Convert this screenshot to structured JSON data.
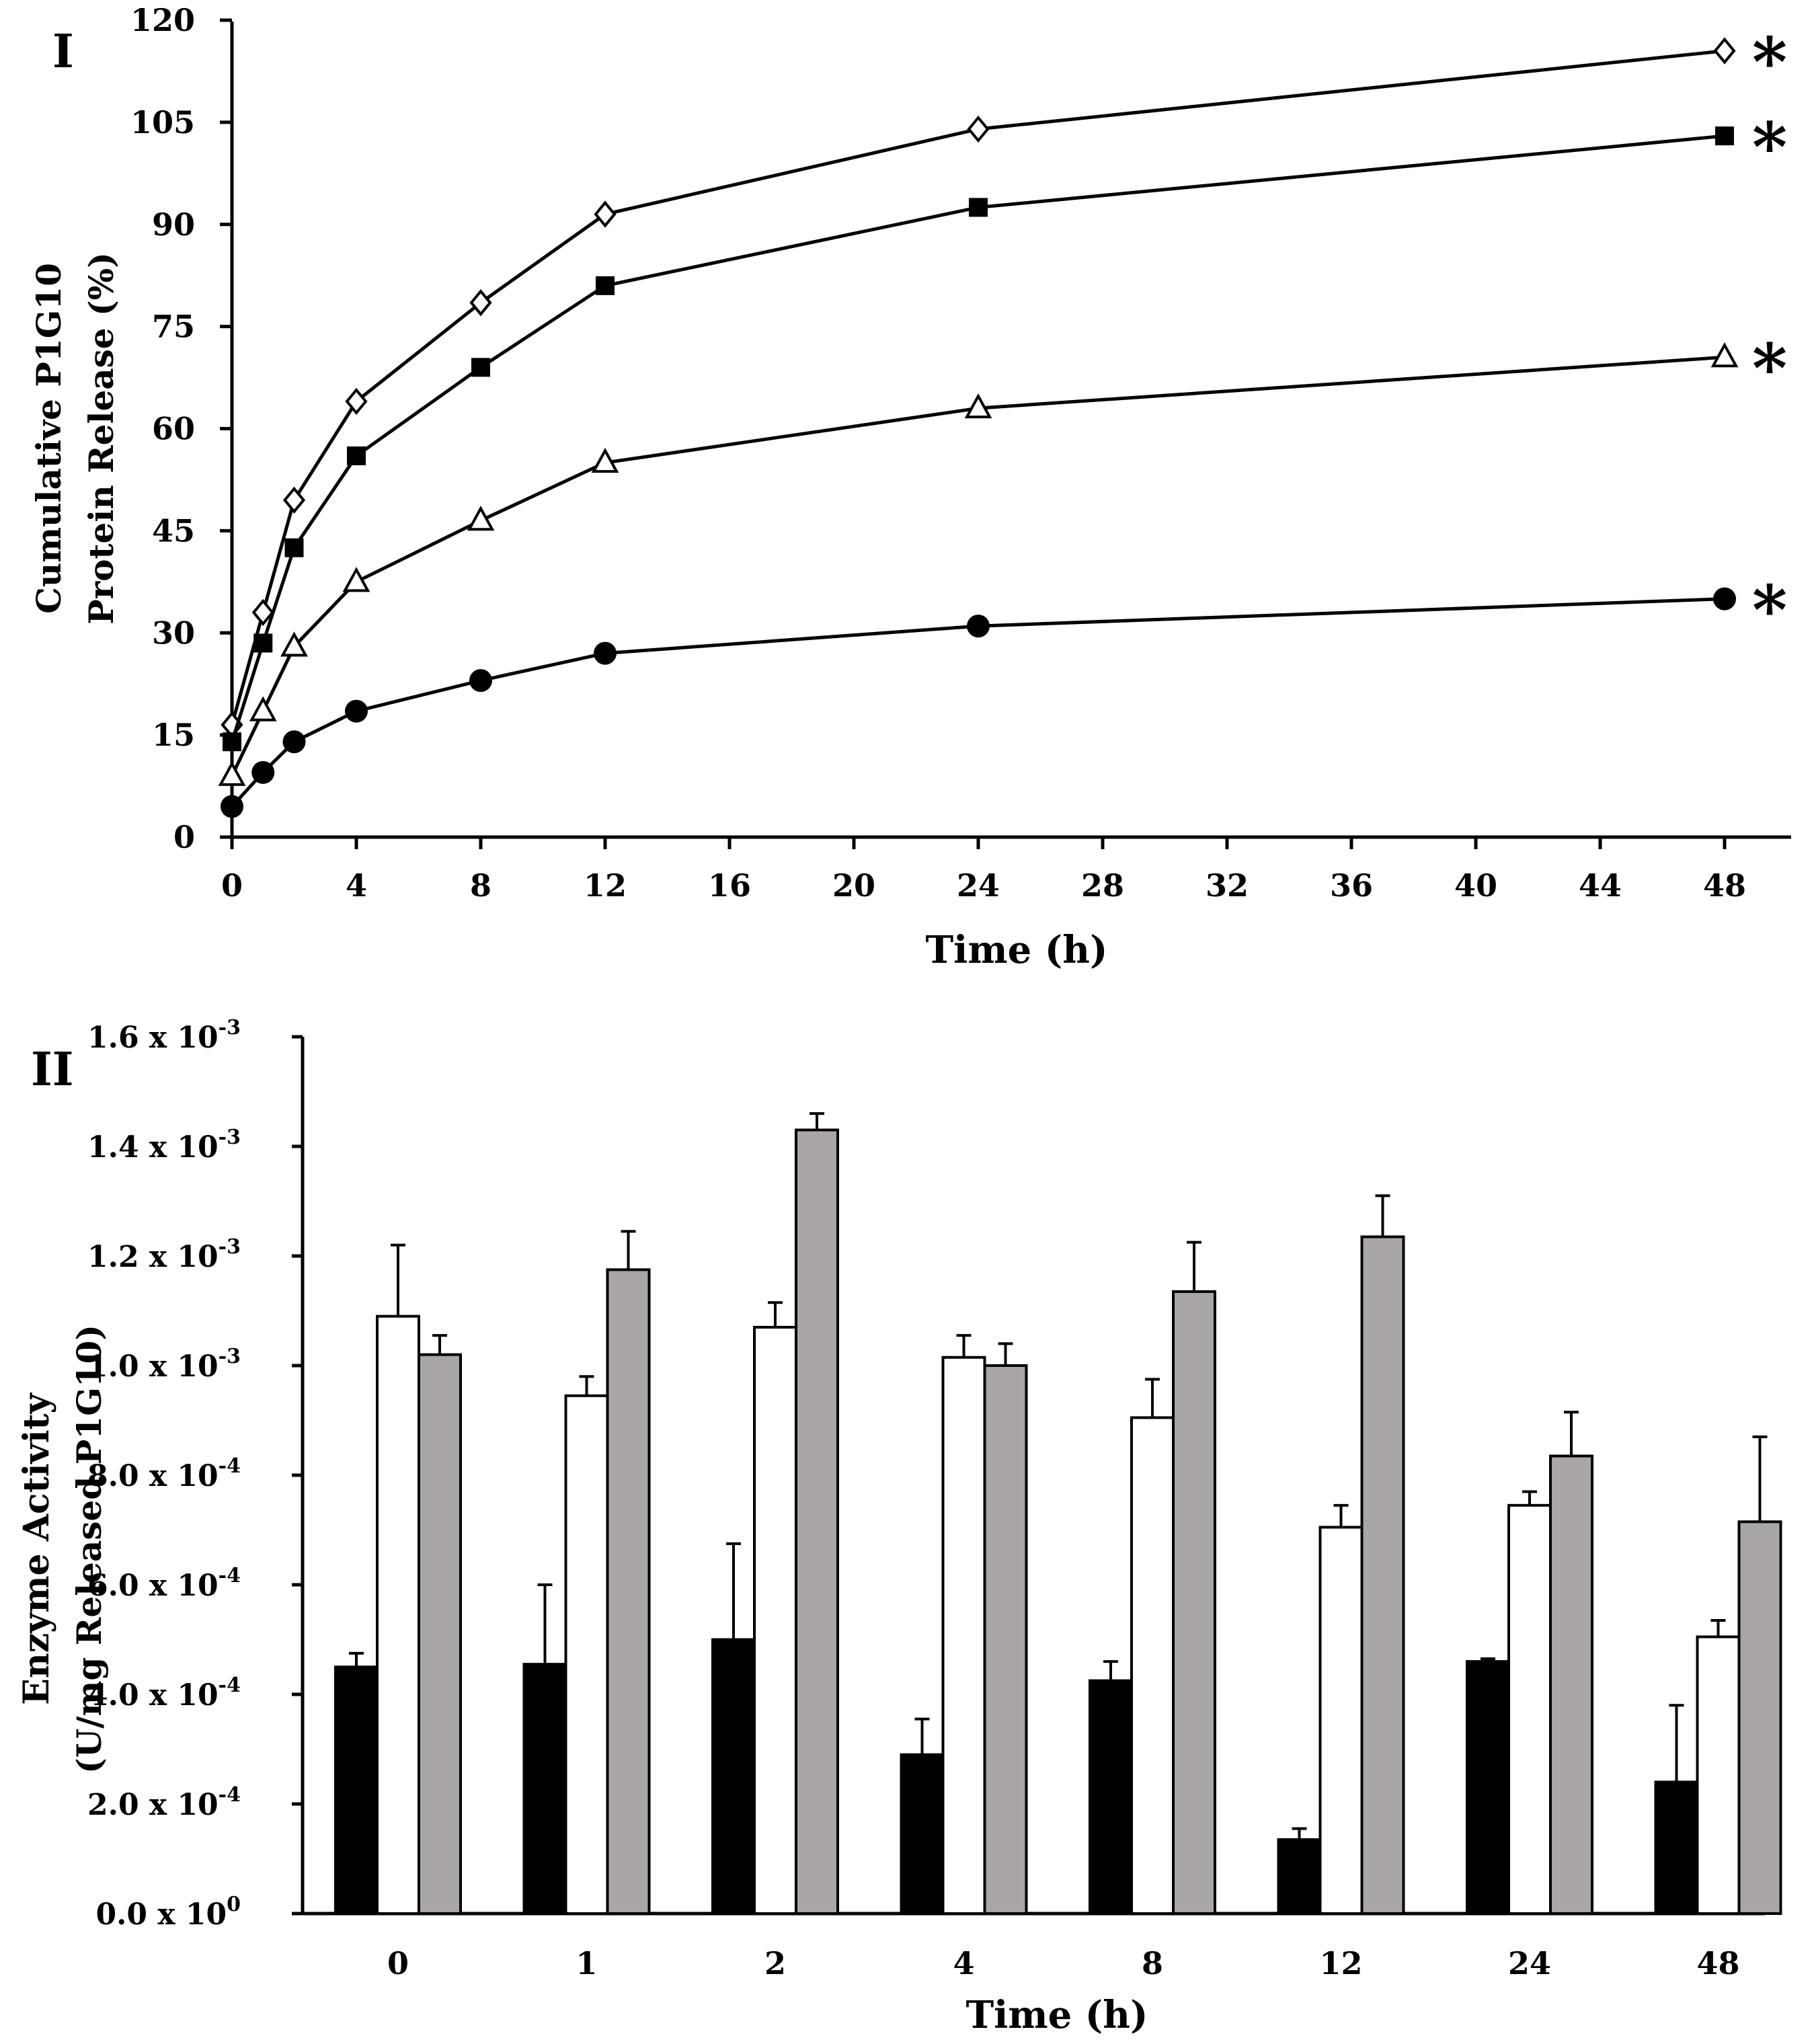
{
  "chart_data": [
    {
      "type": "line",
      "panel_label": "I",
      "title": "",
      "xlabel": "Time (h)",
      "ylabel_lines": [
        "Cumulative P1G10",
        "Protein Release (%)"
      ],
      "xlim": [
        0,
        50
      ],
      "ylim": [
        0,
        120
      ],
      "xticks": [
        "0",
        "4",
        "8",
        "12",
        "16",
        "20",
        "24",
        "28",
        "32",
        "36",
        "40",
        "44",
        "48"
      ],
      "yticks": [
        "0",
        "15",
        "30",
        "45",
        "60",
        "75",
        "90",
        "105",
        "120"
      ],
      "x": [
        0,
        1,
        2,
        4,
        8,
        12,
        24,
        48
      ],
      "series": [
        {
          "name": "open-diamond",
          "marker": "diamond-open",
          "values": [
            16.5,
            33,
            49.5,
            64,
            78.5,
            91.5,
            104,
            115.5
          ],
          "significance": "*"
        },
        {
          "name": "filled-square",
          "marker": "square-filled",
          "values": [
            14,
            28.5,
            42.5,
            56,
            69,
            81,
            92.5,
            103
          ],
          "significance": "*"
        },
        {
          "name": "open-triangle",
          "marker": "triangle-open",
          "values": [
            9,
            18.5,
            28,
            37.5,
            46.5,
            55,
            63,
            70.5
          ],
          "significance": "*"
        },
        {
          "name": "filled-circle",
          "marker": "circle-filled",
          "values": [
            4.5,
            9.5,
            14,
            18.5,
            23,
            27,
            31,
            35
          ],
          "significance": "*"
        }
      ]
    },
    {
      "type": "bar",
      "panel_label": "II",
      "title": "",
      "xlabel": "Time (h)",
      "ylabel_lines": [
        "Enzyme Activity",
        "(U/mg  Released P1G10)"
      ],
      "categories": [
        "0",
        "1",
        "2",
        "4",
        "8",
        "12",
        "24",
        "48"
      ],
      "ylim": [
        0,
        0.0016
      ],
      "yticks": [
        {
          "mantissa": "0.0 x 10",
          "exponent": "0"
        },
        {
          "mantissa": "2.0 x 10",
          "exponent": "-4"
        },
        {
          "mantissa": "4.0 x 10",
          "exponent": "-4"
        },
        {
          "mantissa": "6.0 x 10",
          "exponent": "-4"
        },
        {
          "mantissa": "8.0 x 10",
          "exponent": "-4"
        },
        {
          "mantissa": "1.0 x 10",
          "exponent": "-3"
        },
        {
          "mantissa": "1.2 x 10",
          "exponent": "-3"
        },
        {
          "mantissa": "1.4 x 10",
          "exponent": "-3"
        },
        {
          "mantissa": "1.6 x 10",
          "exponent": "-3"
        }
      ],
      "series": [
        {
          "name": "black",
          "color": "#000000",
          "values": [
            0.00045,
            0.000455,
            0.0005,
            0.00029,
            0.000425,
            0.000135,
            0.00046,
            0.00024
          ],
          "errors": [
            2.5e-05,
            0.000145,
            0.000175,
            6.5e-05,
            3.5e-05,
            2e-05,
            5e-06,
            0.00014
          ]
        },
        {
          "name": "white",
          "color": "#ffffff",
          "values": [
            0.00109,
            0.000945,
            0.00107,
            0.001015,
            0.000905,
            0.000705,
            0.000745,
            0.000505
          ],
          "errors": [
            0.00013,
            3.5e-05,
            4.5e-05,
            4e-05,
            7e-05,
            4e-05,
            2.5e-05,
            3e-05
          ]
        },
        {
          "name": "gray",
          "color": "#aaa6a5",
          "values": [
            0.00102,
            0.001175,
            0.00143,
            0.001,
            0.001135,
            0.001235,
            0.000835,
            0.000715
          ],
          "errors": [
            3.5e-05,
            7e-05,
            3e-05,
            4e-05,
            9e-05,
            7.5e-05,
            8e-05,
            0.000155
          ]
        }
      ]
    }
  ]
}
